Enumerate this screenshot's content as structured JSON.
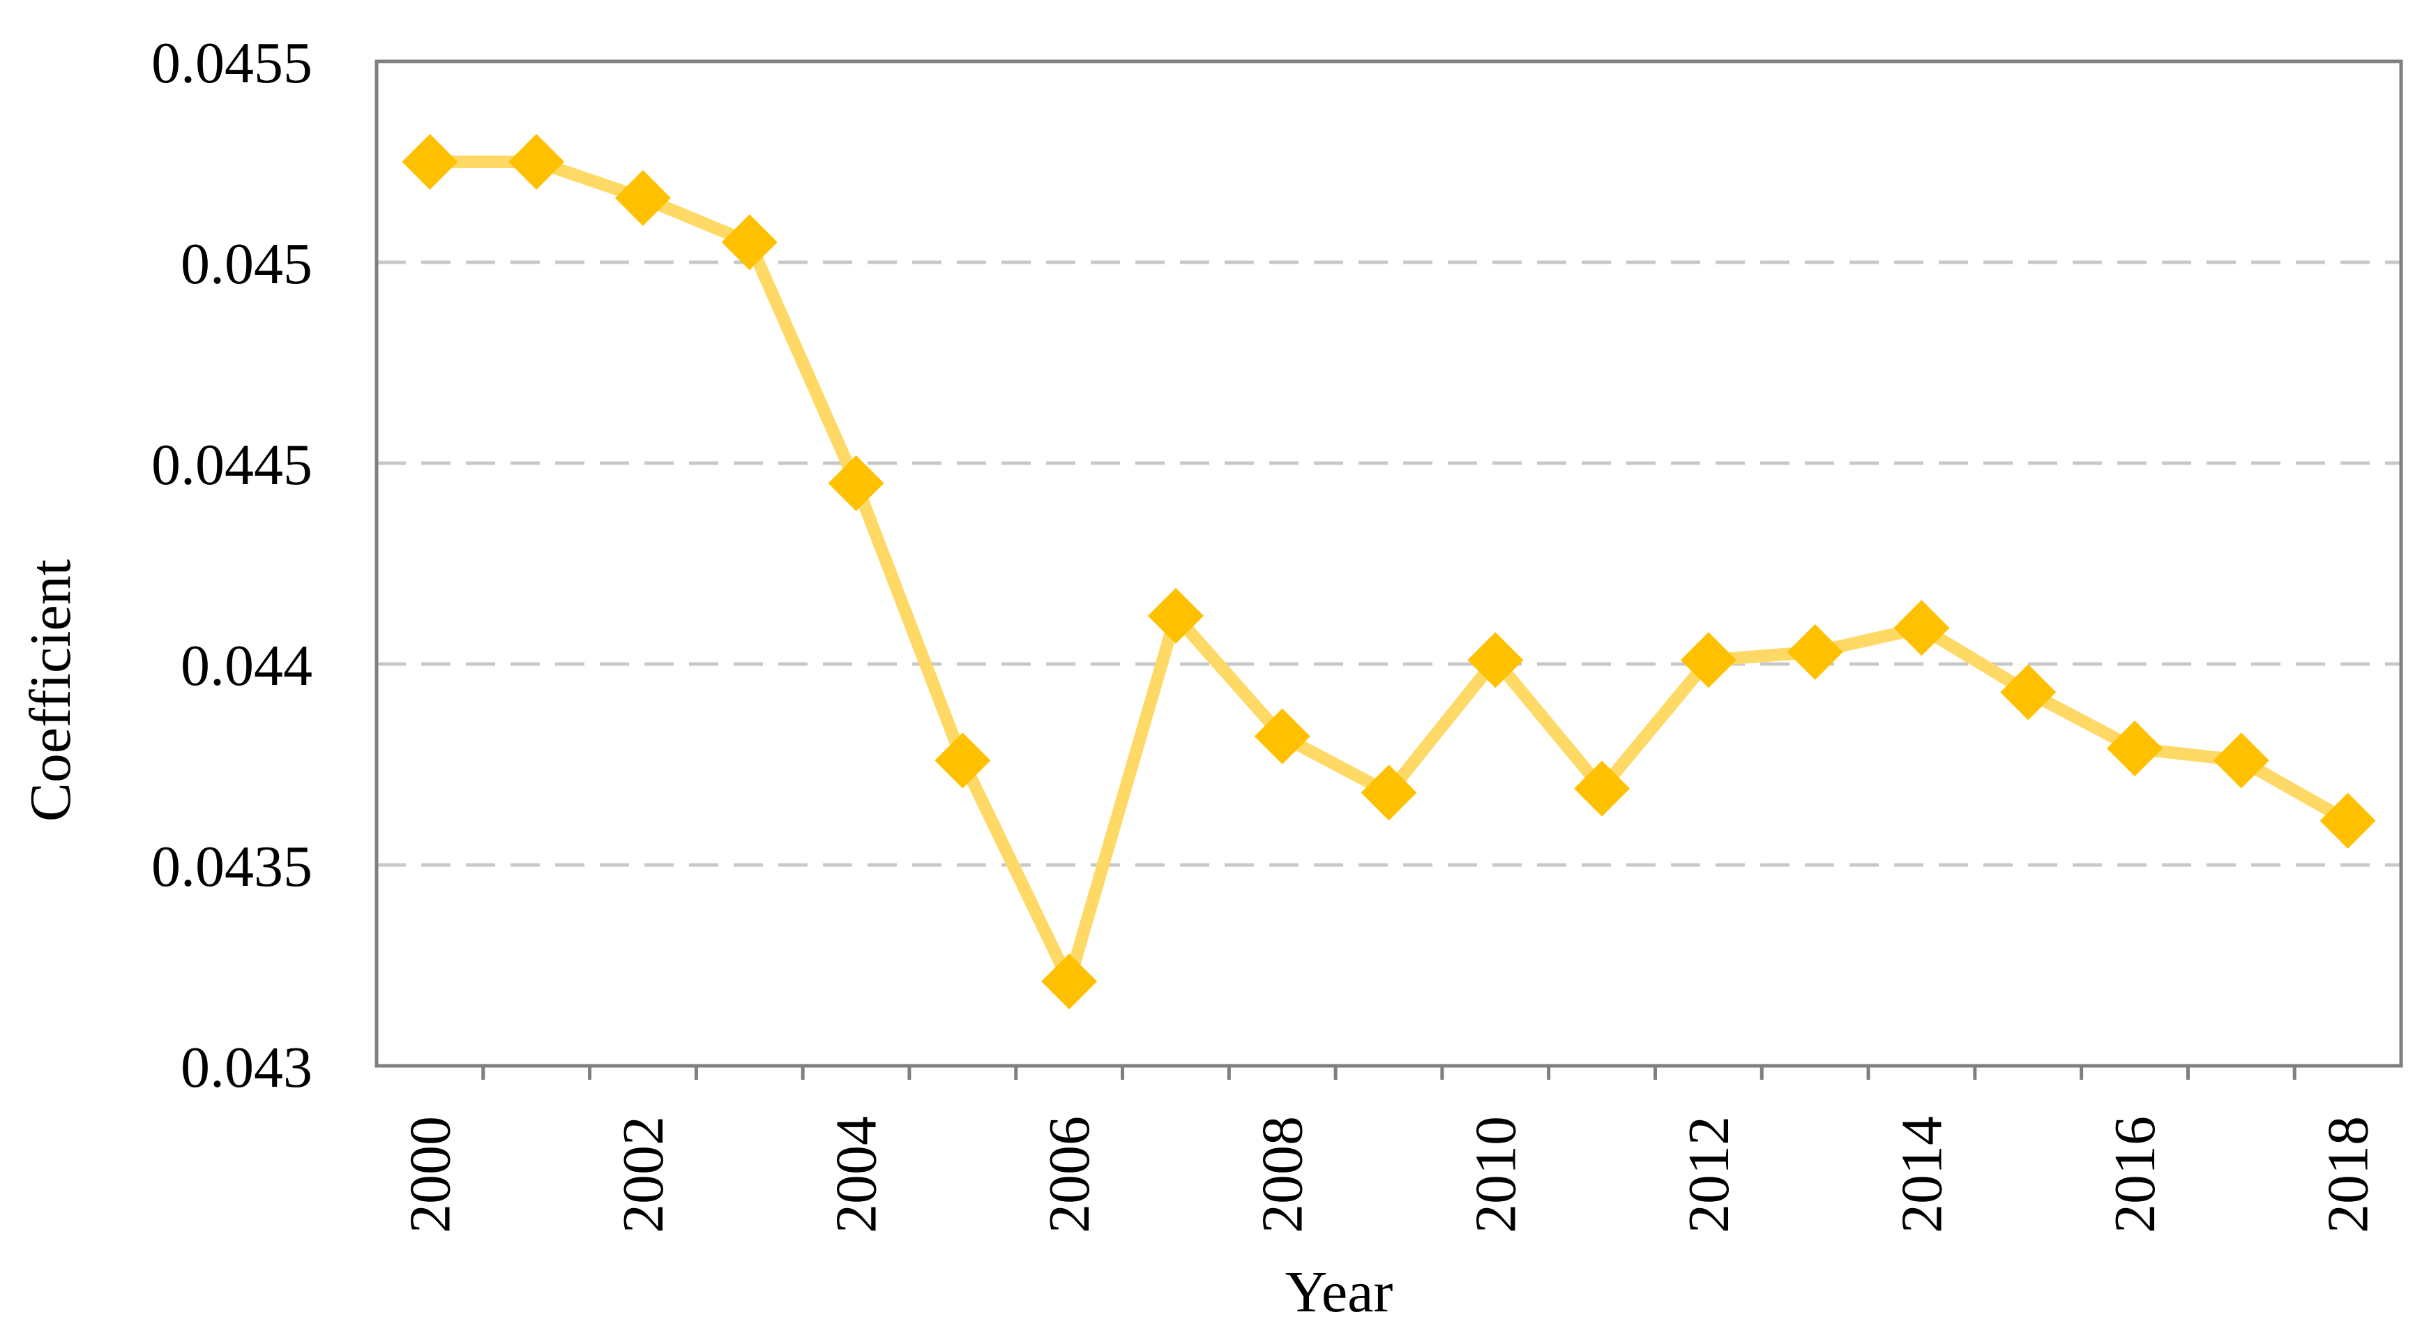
{
  "chart_data": {
    "type": "line",
    "title": "",
    "xlabel": "Year",
    "ylabel": "Coefficient",
    "ylim": [
      0.043,
      0.0455
    ],
    "yticks": [
      "0.043",
      "0.0435",
      "0.044",
      "0.0445",
      "0.045",
      "0.0455"
    ],
    "xticks": [
      "2000",
      "2002",
      "2004",
      "2006",
      "2008",
      "2010",
      "2012",
      "2014",
      "2016",
      "2018"
    ],
    "grid": true,
    "legend": "none",
    "series": [
      {
        "color": "#ffd966",
        "marker": "diamond",
        "marker_color": "#ffc000",
        "x": [
          2000,
          2001,
          2002,
          2003,
          2004,
          2005,
          2006,
          2007,
          2008,
          2009,
          2010,
          2011,
          2012,
          2013,
          2014,
          2015,
          2016,
          2017,
          2018
        ],
        "values": [
          0.04525,
          0.04525,
          0.04516,
          0.04505,
          0.04445,
          0.04376,
          0.04321,
          0.04412,
          0.04382,
          0.04368,
          0.04401,
          0.04369,
          0.04401,
          0.04403,
          0.04409,
          0.04393,
          0.04379,
          0.04376,
          0.04361
        ]
      }
    ]
  }
}
